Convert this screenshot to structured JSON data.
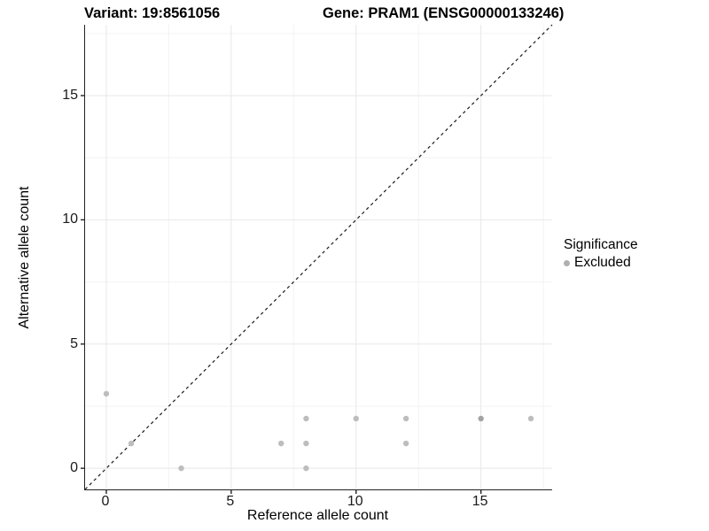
{
  "header": {
    "left_title": "Variant: 19:8561056",
    "right_title": "Gene: PRAM1 (ENSG00000133246)"
  },
  "chart_data": {
    "type": "scatter",
    "title_left": "Variant: 19:8561056",
    "title_right": "Gene: PRAM1 (ENSG00000133246)",
    "xlabel": "Reference allele count",
    "ylabel": "Alternative allele count",
    "xlim": [
      -0.85,
      17.85
    ],
    "ylim": [
      -0.85,
      17.85
    ],
    "x_ticks": [
      0,
      5,
      10,
      15
    ],
    "y_ticks": [
      0,
      5,
      10,
      15
    ],
    "minor_gridlines": [
      2.5,
      7.5,
      12.5,
      17.5
    ],
    "grid": true,
    "identity_line": {
      "style": "dashed",
      "color": "#1a1a1a",
      "from": [
        -0.85,
        -0.85
      ],
      "to": [
        17.85,
        17.85
      ]
    },
    "series": [
      {
        "name": "Excluded",
        "color": "#bdbdbd",
        "darker_color": "#a3a3a3",
        "points": [
          {
            "x": 0,
            "y": 3
          },
          {
            "x": 1,
            "y": 1
          },
          {
            "x": 3,
            "y": 0
          },
          {
            "x": 7,
            "y": 1
          },
          {
            "x": 8,
            "y": 0
          },
          {
            "x": 8,
            "y": 1
          },
          {
            "x": 8,
            "y": 2
          },
          {
            "x": 10,
            "y": 2
          },
          {
            "x": 12,
            "y": 1
          },
          {
            "x": 12,
            "y": 2
          },
          {
            "x": 15,
            "y": 2,
            "darker": true
          },
          {
            "x": 17,
            "y": 2
          }
        ]
      }
    ],
    "legend": {
      "title": "Significance",
      "position": "right",
      "items": [
        {
          "label": "Excluded",
          "color": "#b0b0b0"
        }
      ]
    },
    "style": {
      "major_grid_color": "#e7e7e7",
      "minor_grid_color": "#f3f3f3",
      "axis_line_color": "#222222",
      "point_radius": 3.2
    }
  }
}
